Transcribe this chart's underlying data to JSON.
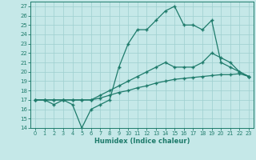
{
  "xlabel": "Humidex (Indice chaleur)",
  "xlim": [
    -0.5,
    23.5
  ],
  "ylim": [
    14,
    27.5
  ],
  "yticks": [
    14,
    15,
    16,
    17,
    18,
    19,
    20,
    21,
    22,
    23,
    24,
    25,
    26,
    27
  ],
  "xticks": [
    0,
    1,
    2,
    3,
    4,
    5,
    6,
    7,
    8,
    9,
    10,
    11,
    12,
    13,
    14,
    15,
    16,
    17,
    18,
    19,
    20,
    21,
    22,
    23
  ],
  "background_color": "#c5e8e8",
  "grid_color": "#9ecfcf",
  "line_color": "#1e7b6b",
  "line1_y": [
    17.0,
    17.0,
    16.5,
    17.0,
    16.5,
    14.0,
    16.0,
    16.5,
    17.0,
    20.5,
    23.0,
    24.5,
    24.5,
    25.5,
    26.5,
    27.0,
    25.0,
    25.0,
    24.5,
    25.5,
    21.0,
    20.5,
    20.0,
    19.5
  ],
  "line2_y": [
    17.0,
    17.0,
    17.0,
    17.0,
    17.0,
    17.0,
    17.0,
    17.5,
    18.0,
    18.5,
    19.0,
    19.5,
    20.0,
    20.5,
    21.0,
    20.5,
    20.5,
    20.5,
    21.0,
    22.0,
    21.5,
    21.0,
    20.0,
    19.5
  ],
  "line3_y": [
    17.0,
    17.0,
    17.0,
    17.0,
    17.0,
    17.0,
    17.0,
    17.2,
    17.5,
    17.8,
    18.0,
    18.3,
    18.5,
    18.8,
    19.0,
    19.2,
    19.3,
    19.4,
    19.5,
    19.6,
    19.7,
    19.7,
    19.8,
    19.5
  ]
}
